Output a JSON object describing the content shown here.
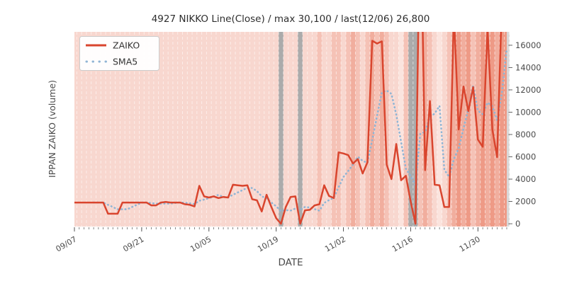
{
  "chart_data": {
    "type": "line",
    "title": "4927 NIKKO Line(Close) / max 30,100 / last(12/06) 26,800",
    "xlabel": "DATE",
    "ylabel": "IPPAN ZAIKO (volume)",
    "legend": {
      "position": "upper-left",
      "items": [
        {
          "label": "ZAIKO",
          "style": "solid"
        },
        {
          "label": "SMA5",
          "style": "dotted"
        }
      ]
    },
    "start_date": "09/07",
    "end_date": "12/06",
    "num_days": 91,
    "x_ticks": [
      {
        "day": 0,
        "label": "09/07"
      },
      {
        "day": 14,
        "label": "09/21"
      },
      {
        "day": 28,
        "label": "10/05"
      },
      {
        "day": 42,
        "label": "10/19"
      },
      {
        "day": 56,
        "label": "11/02"
      },
      {
        "day": 70,
        "label": "11/16"
      },
      {
        "day": 84,
        "label": "11/30"
      }
    ],
    "y_ticks": [
      0,
      2000,
      4000,
      6000,
      8000,
      10000,
      12000,
      14000,
      16000
    ],
    "ylim": [
      -250,
      17200
    ],
    "grid": "vertical-dashed-per-day",
    "series": [
      {
        "name": "ZAIKO",
        "values": [
          1900,
          1900,
          1900,
          1900,
          1900,
          1900,
          1900,
          900,
          900,
          900,
          1900,
          1900,
          1900,
          1900,
          1900,
          1900,
          1650,
          1650,
          1900,
          1950,
          1900,
          1900,
          1900,
          1750,
          1700,
          1550,
          3400,
          2450,
          2350,
          2450,
          2300,
          2400,
          2350,
          3500,
          3450,
          3400,
          3450,
          2200,
          2100,
          1100,
          2600,
          1500,
          500,
          0,
          1500,
          2400,
          2450,
          0,
          1200,
          1250,
          1650,
          1750,
          3450,
          2500,
          2300,
          6400,
          6300,
          6150,
          5400,
          5800,
          4500,
          5500,
          16400,
          16150,
          16350,
          5300,
          4000,
          7150,
          3900,
          4300,
          2000,
          0,
          30100,
          4800,
          11000,
          3500,
          3450,
          1500,
          1500,
          19000,
          8450,
          12300,
          10100,
          12250,
          7550,
          6900,
          17500,
          8440,
          5970,
          20000,
          26800
        ]
      },
      {
        "name": "SMA5",
        "derived_from": "ZAIKO",
        "window": 5
      }
    ],
    "background": {
      "description": "per-day price heatmap stripes; gray = no-data day",
      "levels": [
        1,
        1,
        1,
        1,
        1,
        1,
        1,
        1,
        1,
        1,
        1,
        1,
        1,
        1,
        1,
        1,
        1,
        1,
        1,
        1,
        1,
        1,
        1,
        1,
        1,
        1,
        1,
        1,
        1,
        1,
        1,
        1,
        1,
        1,
        1,
        1,
        1,
        1,
        1,
        1,
        1,
        1,
        1,
        -1,
        1,
        1,
        1,
        -1,
        1,
        1,
        1,
        2,
        1,
        1,
        2,
        2,
        1,
        2,
        3,
        2,
        1,
        2,
        3,
        2,
        3,
        2,
        1,
        1,
        0,
        2,
        -1,
        -1,
        2,
        3,
        2,
        1,
        0,
        1,
        2,
        3,
        4,
        3,
        4,
        2,
        3,
        4,
        3,
        4,
        3,
        4,
        4
      ],
      "palette": [
        "#fbe4de",
        "#f8d7cf",
        "#f5c2b6",
        "#f1ae9e",
        "#ee9a86",
        "#ea8670"
      ],
      "gray": "#ababab",
      "edge_color": "#d9d9d9"
    },
    "colors": {
      "zaiko": "#d9452e",
      "sma5": "#90b5d5",
      "grid": "rgba(255,255,255,0.55)",
      "tick": "#555555",
      "tick_text": "#4a4a4a"
    }
  }
}
